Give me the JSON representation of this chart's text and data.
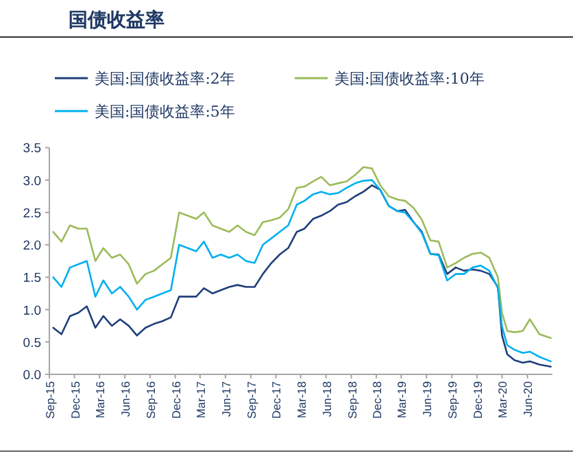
{
  "chart_data": {
    "type": "line",
    "title": "国债收益率",
    "legend": "top",
    "grid": false,
    "marker": "none",
    "line_style": "solid",
    "x": [
      "2015-09-15",
      "2015-10-15",
      "2015-11-15",
      "2015-12-15",
      "2016-01-15",
      "2016-02-15",
      "2016-03-15",
      "2016-04-15",
      "2016-05-15",
      "2016-06-15",
      "2016-07-15",
      "2016-08-15",
      "2016-09-15",
      "2016-10-15",
      "2016-11-15",
      "2016-12-15",
      "2017-01-15",
      "2017-02-15",
      "2017-03-15",
      "2017-04-15",
      "2017-05-15",
      "2017-06-15",
      "2017-07-15",
      "2017-08-15",
      "2017-09-15",
      "2017-10-15",
      "2017-11-15",
      "2017-12-15",
      "2018-01-15",
      "2018-02-15",
      "2018-03-15",
      "2018-04-15",
      "2018-05-15",
      "2018-06-15",
      "2018-07-15",
      "2018-08-15",
      "2018-09-15",
      "2018-10-15",
      "2018-11-15",
      "2018-12-15",
      "2019-01-15",
      "2019-02-15",
      "2019-03-15",
      "2019-04-15",
      "2019-05-15",
      "2019-06-15",
      "2019-07-15",
      "2019-08-15",
      "2019-09-15",
      "2019-10-15",
      "2019-11-15",
      "2019-12-15",
      "2020-01-15",
      "2020-02-15",
      "2020-03-01",
      "2020-03-20",
      "2020-04-15",
      "2020-05-15",
      "2020-06-10",
      "2020-07-15",
      "2020-08-25"
    ],
    "series": [
      {
        "name": "美国:国债收益率:2年",
        "color": "#1f3f7a",
        "values": [
          0.72,
          0.62,
          0.9,
          0.95,
          1.05,
          0.72,
          0.9,
          0.75,
          0.85,
          0.75,
          0.6,
          0.72,
          0.78,
          0.82,
          0.88,
          1.2,
          1.2,
          1.2,
          1.33,
          1.25,
          1.3,
          1.35,
          1.38,
          1.35,
          1.35,
          1.55,
          1.72,
          1.85,
          1.95,
          2.2,
          2.25,
          2.4,
          2.45,
          2.52,
          2.62,
          2.66,
          2.75,
          2.82,
          2.92,
          2.85,
          2.6,
          2.52,
          2.54,
          2.35,
          2.2,
          1.86,
          1.85,
          1.55,
          1.65,
          1.6,
          1.62,
          1.6,
          1.55,
          1.35,
          0.6,
          0.31,
          0.22,
          0.18,
          0.2,
          0.15,
          0.12
        ]
      },
      {
        "name": "美国:国债收益率:10年",
        "color": "#9bbb59",
        "values": [
          2.2,
          2.05,
          2.3,
          2.25,
          2.25,
          1.75,
          1.95,
          1.8,
          1.85,
          1.7,
          1.4,
          1.55,
          1.6,
          1.7,
          1.8,
          2.5,
          2.45,
          2.4,
          2.5,
          2.3,
          2.25,
          2.2,
          2.3,
          2.2,
          2.15,
          2.35,
          2.38,
          2.42,
          2.55,
          2.88,
          2.9,
          2.98,
          3.05,
          2.92,
          2.95,
          2.98,
          3.08,
          3.2,
          3.18,
          2.92,
          2.75,
          2.7,
          2.68,
          2.57,
          2.39,
          2.07,
          2.05,
          1.65,
          1.72,
          1.8,
          1.86,
          1.88,
          1.8,
          1.5,
          0.95,
          0.67,
          0.65,
          0.67,
          0.85,
          0.62,
          0.56
        ]
      },
      {
        "name": "美国:国债收益率:5年",
        "color": "#00b0f0",
        "values": [
          1.5,
          1.35,
          1.65,
          1.7,
          1.75,
          1.2,
          1.45,
          1.25,
          1.35,
          1.2,
          1.0,
          1.15,
          1.2,
          1.25,
          1.3,
          2.0,
          1.95,
          1.9,
          2.05,
          1.8,
          1.85,
          1.8,
          1.85,
          1.75,
          1.72,
          2.0,
          2.1,
          2.2,
          2.3,
          2.62,
          2.68,
          2.78,
          2.82,
          2.78,
          2.8,
          2.88,
          2.95,
          2.99,
          3.0,
          2.85,
          2.6,
          2.52,
          2.5,
          2.35,
          2.18,
          1.86,
          1.84,
          1.45,
          1.55,
          1.55,
          1.65,
          1.68,
          1.6,
          1.33,
          0.74,
          0.45,
          0.38,
          0.33,
          0.35,
          0.27,
          0.2
        ]
      }
    ],
    "xlim": [
      "2015-09-01",
      "2020-08-31"
    ],
    "xticks": [
      {
        "value": "2015-09-01",
        "label": "Sep-15"
      },
      {
        "value": "2015-12-01",
        "label": "Dec-15"
      },
      {
        "value": "2016-03-01",
        "label": "Mar-16"
      },
      {
        "value": "2016-06-01",
        "label": "Jun-16"
      },
      {
        "value": "2016-09-01",
        "label": "Sep-16"
      },
      {
        "value": "2016-12-01",
        "label": "Dec-16"
      },
      {
        "value": "2017-03-01",
        "label": "Mar-17"
      },
      {
        "value": "2017-06-01",
        "label": "Jun-17"
      },
      {
        "value": "2017-09-01",
        "label": "Sep-17"
      },
      {
        "value": "2017-12-01",
        "label": "Dec-17"
      },
      {
        "value": "2018-03-01",
        "label": "Mar-18"
      },
      {
        "value": "2018-06-01",
        "label": "Jun-18"
      },
      {
        "value": "2018-09-01",
        "label": "Sep-18"
      },
      {
        "value": "2018-12-01",
        "label": "Dec-18"
      },
      {
        "value": "2019-03-01",
        "label": "Mar-19"
      },
      {
        "value": "2019-06-01",
        "label": "Jun-19"
      },
      {
        "value": "2019-09-01",
        "label": "Sep-19"
      },
      {
        "value": "2019-12-01",
        "label": "Dec-19"
      },
      {
        "value": "2020-03-01",
        "label": "Mar-20"
      },
      {
        "value": "2020-06-01",
        "label": "Jun-20"
      }
    ],
    "ylim": [
      0,
      3.5
    ],
    "yticks": [
      {
        "value": 0,
        "label": "0.0"
      },
      {
        "value": 0.5,
        "label": "0.5"
      },
      {
        "value": 1,
        "label": "1.0"
      },
      {
        "value": 1.5,
        "label": "1.5"
      },
      {
        "value": 2,
        "label": "2.0"
      },
      {
        "value": 2.5,
        "label": "2.5"
      },
      {
        "value": 3,
        "label": "3.0"
      },
      {
        "value": 3.5,
        "label": "3.5"
      }
    ]
  }
}
